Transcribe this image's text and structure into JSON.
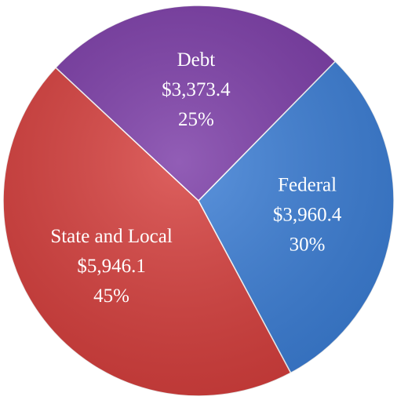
{
  "chart_data": {
    "type": "pie",
    "categories": [
      "Debt",
      "Federal",
      "State and Local"
    ],
    "values": [
      3373.4,
      3960.4,
      5946.1
    ],
    "value_labels": [
      "$3,373.4",
      "$3,960.4",
      "$5,946.1"
    ],
    "percent_labels": [
      "25%",
      "30%",
      "45%"
    ],
    "colors": [
      "#7a3aa6",
      "#3b7ed6",
      "#d63e3c"
    ]
  }
}
